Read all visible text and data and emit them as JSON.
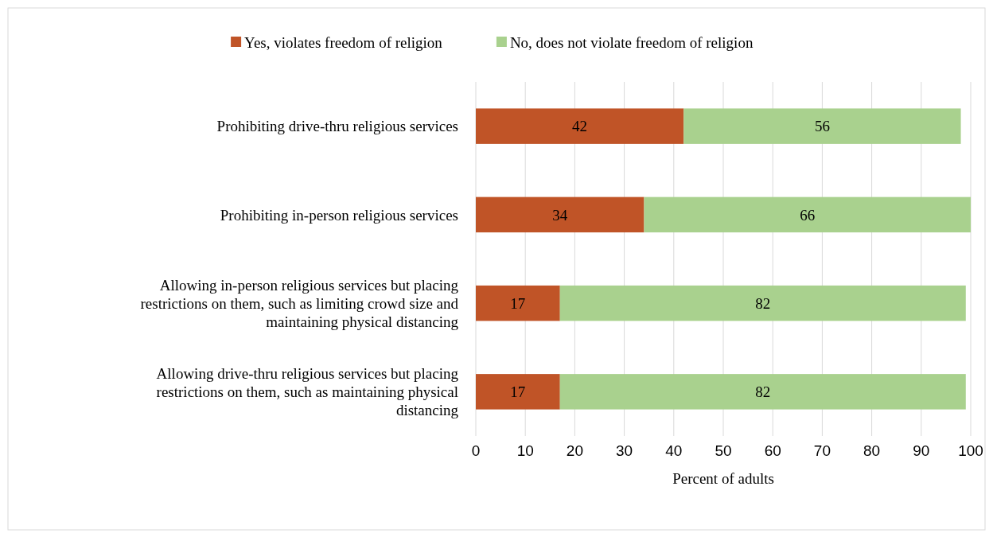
{
  "chart_data": {
    "type": "bar",
    "orientation": "horizontal",
    "stacked": true,
    "categories": [
      "Prohibiting drive-thru religious services",
      "Prohibiting in-person religious services",
      "Allowing in-person religious services but placing restrictions on them, such as limiting crowd size and maintaining physical distancing",
      "Allowing drive-thru religious services but placing restrictions on them, such as maintaining physical distancing"
    ],
    "series": [
      {
        "name": "Yes, violates freedom of religion",
        "color": "#c05427",
        "values": [
          42,
          34,
          17,
          17
        ]
      },
      {
        "name": "No, does not violate freedom of religion",
        "color": "#a9d18e",
        "values": [
          56,
          66,
          82,
          82
        ]
      }
    ],
    "xlabel": "Percent of adults",
    "xlim": [
      0,
      100
    ],
    "xticks": [
      0,
      10,
      20,
      30,
      40,
      50,
      60,
      70,
      80,
      90,
      100
    ],
    "grid": "x",
    "legend": "top",
    "data_labels": true
  }
}
